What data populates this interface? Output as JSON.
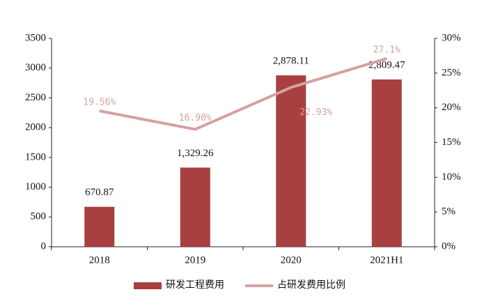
{
  "chart_data": {
    "type": "combo",
    "categories": [
      "2018",
      "2019",
      "2020",
      "2021H1"
    ],
    "series": [
      {
        "name": "研发工程费用",
        "type": "bar",
        "color": "#a8403f",
        "axis": "y",
        "values": [
          670.87,
          1329.26,
          2878.11,
          2809.47
        ],
        "value_labels": [
          "670.87",
          "1,329.26",
          "2,878.11",
          "2,809.47"
        ]
      },
      {
        "name": "占研发费用比例",
        "type": "line",
        "color": "#d4a1a1",
        "axis": "y2",
        "values": [
          19.56,
          16.9,
          22.93,
          27.1
        ],
        "value_labels": [
          "19.56%",
          "16.90%",
          "22.93%",
          "27.1%"
        ]
      }
    ],
    "ylim": [
      0,
      3500
    ],
    "yticks": [
      0,
      500,
      1000,
      1500,
      2000,
      2500,
      3000,
      3500
    ],
    "y2lim": [
      0,
      30
    ],
    "y2ticks": [
      {
        "value": 0,
        "label": "0%"
      },
      {
        "value": 5,
        "label": "5%"
      },
      {
        "value": 10,
        "label": "10%"
      },
      {
        "value": 15,
        "label": "15%"
      },
      {
        "value": 20,
        "label": "20%"
      },
      {
        "value": 25,
        "label": "25%"
      },
      {
        "value": 30,
        "label": "30%"
      }
    ],
    "legend": "bottom"
  }
}
